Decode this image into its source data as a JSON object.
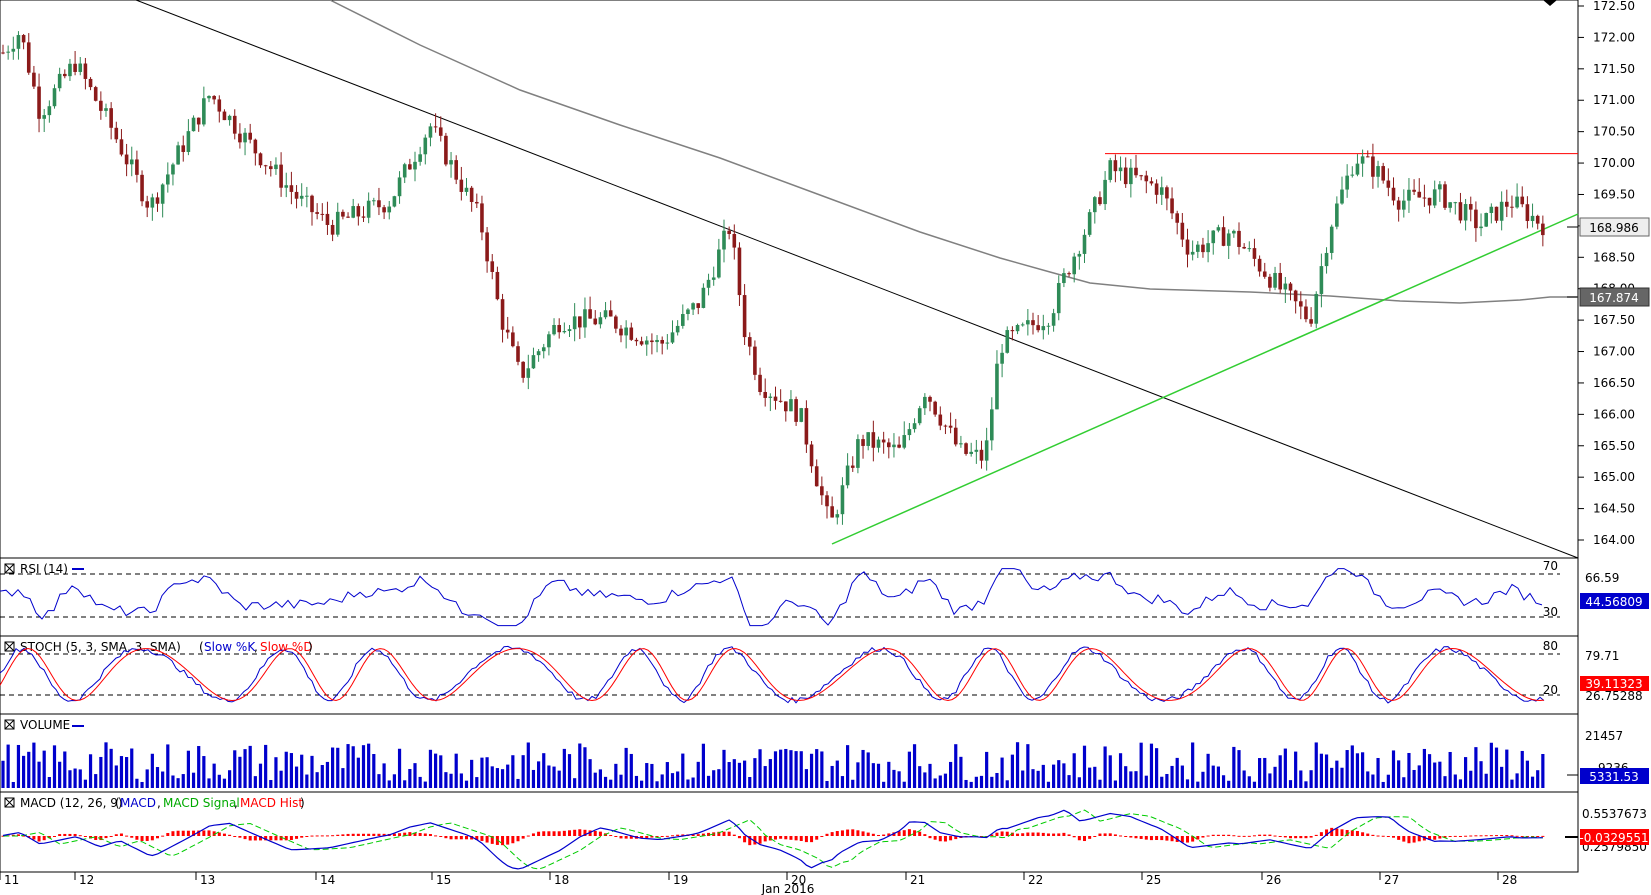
{
  "chart_data": {
    "type": "candlestick",
    "main": {
      "y_ticks": [
        "172.50",
        "172.00",
        "171.50",
        "171.00",
        "170.50",
        "170.00",
        "169.50",
        "169.00",
        "168.50",
        "168.00",
        "167.50",
        "167.00",
        "166.50",
        "166.00",
        "165.50",
        "165.00",
        "164.50",
        "164.00"
      ],
      "ylim": [
        163.85,
        172.6
      ],
      "last_price_label": "168.986",
      "last_price": 168.986,
      "ma_label": "167.874",
      "ma_value": 167.874,
      "resistance_level": 170.15,
      "colors": {
        "up": "#2e8b57",
        "down": "#8b1a1a",
        "resistance": "#ff0000",
        "support": "#32cd32",
        "trend": "#000000",
        "ma": "#808080"
      }
    },
    "x_axis": {
      "labels": [
        "11",
        "12",
        "13",
        "14",
        "15",
        "18",
        "19",
        "20",
        "21",
        "22",
        "25",
        "26",
        "27",
        "28"
      ],
      "month_label": "Jan 2016"
    },
    "rsi": {
      "title": "RSI (14)",
      "levels": [
        "70",
        "30"
      ],
      "scale_label": "66.59",
      "value_label": "44.56809",
      "value": 44.56809,
      "color": "#0000cc"
    },
    "stoch": {
      "title": "STOCH (5, 3, SMA, 3, SMA)",
      "legend": [
        "Slow %K",
        "Slow %D"
      ],
      "levels": [
        "80",
        "20"
      ],
      "scale_label": "79.71",
      "value_label_d": "39.11323",
      "value_label_k": "26.75288",
      "colors": {
        "k": "#0000cc",
        "d": "#ff0000"
      }
    },
    "volume": {
      "title": "VOLUME",
      "scale_label": "21457",
      "mid_label": "9236",
      "value_label": "5331.53",
      "value": 5331.53,
      "color": "#0000cc"
    },
    "macd": {
      "title": "MACD (12, 26, 9)",
      "legend": [
        "MACD",
        "MACD Signal",
        "MACD Hist"
      ],
      "scale_label": "0.5537673",
      "value_label": "-0.0329551",
      "value": -0.0329551,
      "low_label": "0.2579850",
      "colors": {
        "macd": "#0000cc",
        "signal": "#00cc00",
        "hist": "#ff0000"
      }
    }
  }
}
